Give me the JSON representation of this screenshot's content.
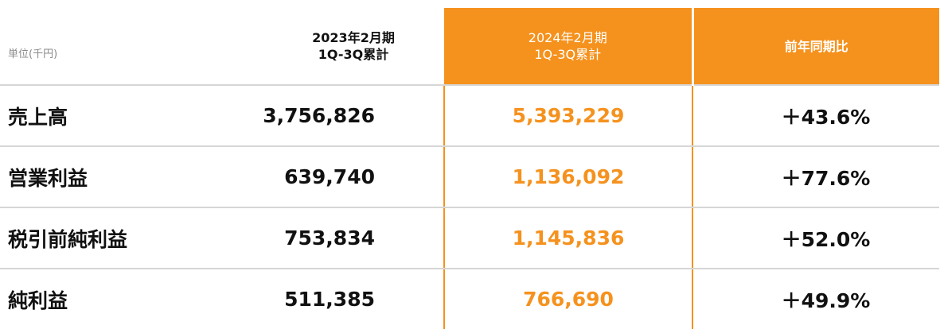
{
  "unit_label": "単位(千円)",
  "columns": {
    "previous": {
      "line1": "2023年2月期",
      "line2": "1Q-3Q累計"
    },
    "current": {
      "line1": "2024年2月期",
      "line2": "1Q-3Q累計"
    },
    "yoy": {
      "label": "前年同期比"
    }
  },
  "rows": [
    {
      "label": "売上高",
      "previous": "3,756,826",
      "current": "5,393,229",
      "yoy": "＋43.6%"
    },
    {
      "label": "営業利益",
      "previous": "639,740",
      "current": "1,136,092",
      "yoy": "＋77.6%"
    },
    {
      "label": "税引前純利益",
      "previous": "753,834",
      "current": "1,145,836",
      "yoy": "＋52.0%"
    },
    {
      "label": "純利益",
      "previous": "511,385",
      "current": "766,690",
      "yoy": "＋49.9%"
    }
  ],
  "colors": {
    "accent": "#f5921e",
    "divider": "#d6d6d6",
    "unit_text": "#8a8a8a"
  }
}
